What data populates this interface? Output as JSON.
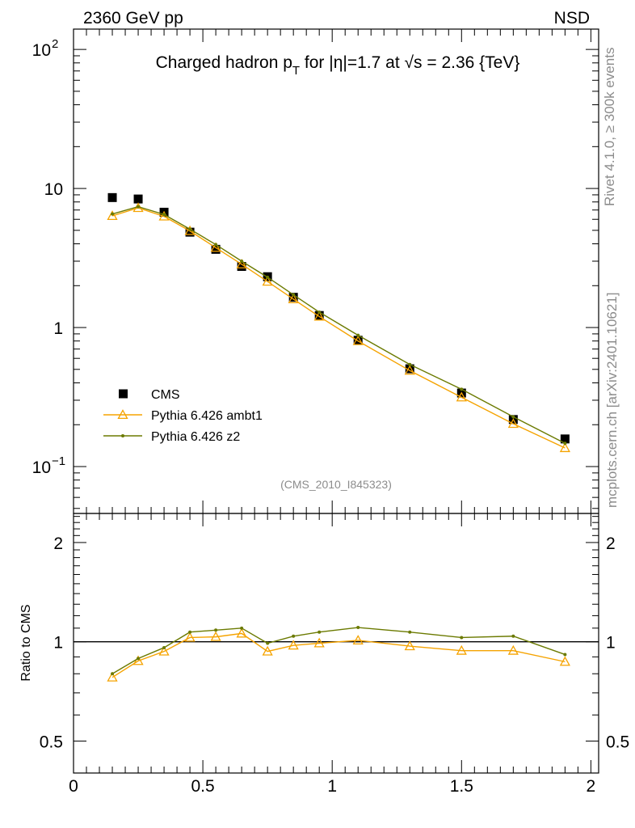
{
  "header": {
    "left": "2360 GeV pp",
    "right": "NSD"
  },
  "side_labels": {
    "top": "Rivet 4.1.0, ≥ 300k events",
    "bottom": "mcplots.cern.ch [arXiv:2401.10621]"
  },
  "analysis_id": "(CMS_2010_I845323)",
  "chart_data": [
    {
      "type": "scatter",
      "name": "main-panel",
      "title": "Charged hadron p_T for |η|=1.7 at √s = 2.36 {TeV}",
      "title_parts": {
        "pre": "Charged hadron p",
        "sub": "T",
        "mid": " for |η|=1.7 at ",
        "sqrt": "√",
        "post": "s = 2.36 {TeV}"
      },
      "xlabel": "",
      "ylabel": "",
      "xscale": "linear",
      "yscale": "log",
      "xlim": [
        0,
        2.03
      ],
      "ylim": [
        0.046,
        140
      ],
      "x_ticks": [
        0,
        0.5,
        1,
        1.5,
        2
      ],
      "y_tick_labels": [
        {
          "value": 0.1,
          "base": "10",
          "exp": "−1"
        },
        {
          "value": 1,
          "base": "1",
          "exp": ""
        },
        {
          "value": 10,
          "base": "10",
          "exp": ""
        },
        {
          "value": 100,
          "base": "10",
          "exp": "2"
        }
      ],
      "legend_position": "bottom-left",
      "series": [
        {
          "name": "CMS",
          "style": "data",
          "color": "#000000",
          "x": [
            0.15,
            0.25,
            0.35,
            0.45,
            0.55,
            0.65,
            0.75,
            0.85,
            0.95,
            1.1,
            1.3,
            1.5,
            1.7,
            1.9
          ],
          "y": [
            8.6,
            8.4,
            6.75,
            4.85,
            3.65,
            2.75,
            2.32,
            1.65,
            1.22,
            0.81,
            0.505,
            0.338,
            0.218,
            0.158
          ]
        },
        {
          "name": "Pythia 6.426 ambt1",
          "style": "triangle",
          "color": "#f5a300",
          "x": [
            0.15,
            0.25,
            0.35,
            0.45,
            0.55,
            0.65,
            0.75,
            0.85,
            0.95,
            1.1,
            1.3,
            1.5,
            1.7,
            1.9
          ],
          "y": [
            6.35,
            7.25,
            6.3,
            4.95,
            3.75,
            2.85,
            2.14,
            1.6,
            1.2,
            0.8,
            0.49,
            0.315,
            0.203,
            0.136
          ]
        },
        {
          "name": "Pythia 6.426 z2",
          "style": "dot",
          "color": "#6b7a00",
          "x": [
            0.15,
            0.25,
            0.35,
            0.45,
            0.55,
            0.65,
            0.75,
            0.85,
            0.95,
            1.1,
            1.3,
            1.5,
            1.7,
            1.9
          ],
          "y": [
            6.55,
            7.4,
            6.5,
            5.1,
            3.95,
            3.0,
            2.3,
            1.72,
            1.29,
            0.88,
            0.542,
            0.36,
            0.228,
            0.147
          ]
        }
      ]
    },
    {
      "type": "line",
      "name": "ratio-panel",
      "ylabel": "Ratio to CMS",
      "xlabel": "",
      "xscale": "linear",
      "yscale": "log",
      "xlim": [
        0,
        2.03
      ],
      "ylim": [
        0.4,
        2.45
      ],
      "x_ticks": [
        0,
        0.5,
        1,
        1.5,
        2
      ],
      "x_tick_labels": [
        "0",
        "0.5",
        "1",
        "1.5",
        "2"
      ],
      "y_ticks": [
        0.5,
        1,
        2
      ],
      "y_tick_labels": [
        "0.5",
        "1",
        "2"
      ],
      "reference_line": 1,
      "series": [
        {
          "name": "Pythia 6.426 ambt1",
          "style": "triangle",
          "color": "#f5a300",
          "x": [
            0.15,
            0.25,
            0.35,
            0.45,
            0.55,
            0.65,
            0.75,
            0.85,
            0.95,
            1.1,
            1.3,
            1.5,
            1.7,
            1.9
          ],
          "y": [
            0.78,
            0.875,
            0.935,
            1.03,
            1.035,
            1.06,
            0.935,
            0.975,
            0.99,
            1.01,
            0.97,
            0.94,
            0.94,
            0.87
          ]
        },
        {
          "name": "Pythia 6.426 z2",
          "style": "dot",
          "color": "#6b7a00",
          "x": [
            0.15,
            0.25,
            0.35,
            0.45,
            0.55,
            0.65,
            0.75,
            0.85,
            0.95,
            1.1,
            1.3,
            1.5,
            1.7,
            1.9
          ],
          "y": [
            0.8,
            0.89,
            0.96,
            1.07,
            1.085,
            1.1,
            0.99,
            1.04,
            1.07,
            1.105,
            1.07,
            1.03,
            1.04,
            0.915
          ]
        }
      ]
    }
  ]
}
